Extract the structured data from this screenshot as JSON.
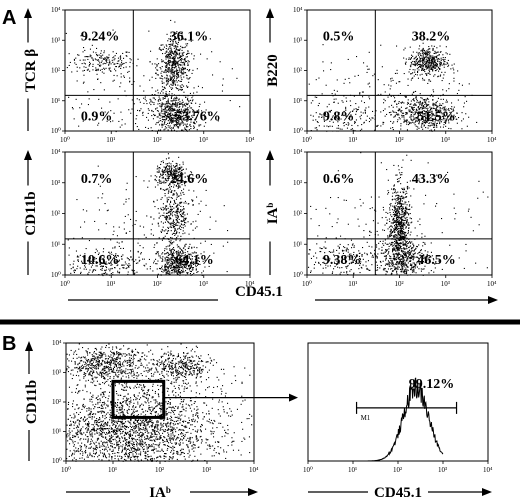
{
  "panel_letters": {
    "a": "A",
    "b": "B"
  },
  "shared_xlabel": "CD45.1",
  "chart_data": [
    {
      "type": "scatter",
      "panel": "A",
      "xlabel": "",
      "ylabel": "TCR β",
      "xscale": "log",
      "yscale": "log",
      "xlim": [
        1,
        10000
      ],
      "ylim": [
        1,
        10000
      ],
      "x_ticks": [
        "10⁰",
        "10¹",
        "10²",
        "10³",
        "10⁴"
      ],
      "y_ticks": [
        "10⁰",
        "10¹",
        "10²",
        "10³",
        "10⁴"
      ],
      "gate": {
        "x": 30,
        "y": 15
      },
      "quadrants": {
        "upper_left": "9.24%",
        "upper_right": "36.1%",
        "lower_left": "0.9%",
        "lower_right": "53.76%"
      }
    },
    {
      "type": "scatter",
      "panel": "A",
      "xlabel": "",
      "ylabel": "B220",
      "xscale": "log",
      "yscale": "log",
      "xlim": [
        1,
        10000
      ],
      "ylim": [
        1,
        10000
      ],
      "x_ticks": [
        "10⁰",
        "10¹",
        "10²",
        "10³",
        "10⁴"
      ],
      "y_ticks": [
        "10⁰",
        "10¹",
        "10²",
        "10³",
        "10⁴"
      ],
      "gate": {
        "x": 30,
        "y": 15
      },
      "quadrants": {
        "upper_left": "0.5%",
        "upper_right": "38.2%",
        "lower_left": "9.8%",
        "lower_right": "51.5%"
      }
    },
    {
      "type": "scatter",
      "panel": "A",
      "xlabel": "",
      "ylabel": "CD11b",
      "xscale": "log",
      "yscale": "log",
      "xlim": [
        1,
        10000
      ],
      "ylim": [
        1,
        10000
      ],
      "x_ticks": [
        "10⁰",
        "10¹",
        "10²",
        "10³",
        "10⁴"
      ],
      "y_ticks": [
        "10⁰",
        "10¹",
        "10²",
        "10³",
        "10⁴"
      ],
      "gate": {
        "x": 30,
        "y": 15
      },
      "quadrants": {
        "upper_left": "0.7%",
        "upper_right": "24.6%",
        "lower_left": "10.6%",
        "lower_right": "64.1%"
      }
    },
    {
      "type": "scatter",
      "panel": "A",
      "xlabel": "",
      "ylabel": "IAᵇ",
      "xscale": "log",
      "yscale": "log",
      "xlim": [
        1,
        10000
      ],
      "ylim": [
        1,
        10000
      ],
      "x_ticks": [
        "10⁰",
        "10¹",
        "10²",
        "10³",
        "10⁴"
      ],
      "y_ticks": [
        "10⁰",
        "10¹",
        "10²",
        "10³",
        "10⁴"
      ],
      "gate": {
        "x": 30,
        "y": 15
      },
      "quadrants": {
        "upper_left": "0.6%",
        "upper_right": "43.3%",
        "lower_left": "9.38%",
        "lower_right": "46.5%"
      }
    },
    {
      "type": "scatter",
      "panel": "B",
      "xlabel": "IAᵇ",
      "ylabel": "CD11b",
      "xscale": "log",
      "yscale": "log",
      "xlim": [
        1,
        10000
      ],
      "ylim": [
        1,
        10000
      ],
      "x_ticks": [
        "10⁰",
        "10¹",
        "10²",
        "10³",
        "10⁴"
      ],
      "y_ticks": [
        "10⁰",
        "10¹",
        "10²",
        "10³",
        "10⁴"
      ],
      "gate_box": {
        "x": [
          10,
          120
        ],
        "y": [
          30,
          500
        ]
      }
    },
    {
      "type": "histogram",
      "panel": "B",
      "xlabel": "CD45.1",
      "xscale": "log",
      "xlim": [
        1,
        10000
      ],
      "x_ticks": [
        "10⁰",
        "10¹",
        "10²",
        "10³",
        "10⁴"
      ],
      "marker": {
        "label": "M1",
        "range": [
          12,
          2000
        ],
        "percent": "99.12%"
      },
      "peak_center": 250
    }
  ]
}
